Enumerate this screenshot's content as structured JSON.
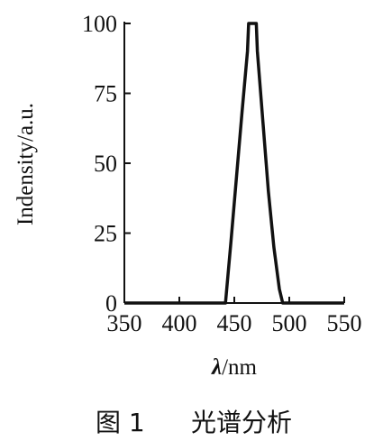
{
  "chart_data": {
    "type": "line",
    "xlabel_symbol": "λ",
    "xlabel_unit": "/nm",
    "ylabel": "Indensity/a.u.",
    "xlim": [
      350,
      550
    ],
    "ylim": [
      0,
      100
    ],
    "x_ticks": [
      "350",
      "400",
      "450",
      "500",
      "550"
    ],
    "y_ticks": [
      "0",
      "25",
      "50",
      "75",
      "100"
    ],
    "series": [
      {
        "points": [
          [
            350,
            0
          ],
          [
            442,
            0
          ],
          [
            447,
            22
          ],
          [
            452,
            45
          ],
          [
            457,
            68
          ],
          [
            462,
            90
          ],
          [
            463,
            100
          ],
          [
            470,
            100
          ],
          [
            471,
            90
          ],
          [
            476,
            65
          ],
          [
            481,
            40
          ],
          [
            486,
            20
          ],
          [
            491,
            5
          ],
          [
            494,
            0
          ],
          [
            550,
            0
          ]
        ]
      }
    ],
    "color": "#111111"
  },
  "caption": {
    "label": "图 1",
    "text": "光谱分析"
  }
}
